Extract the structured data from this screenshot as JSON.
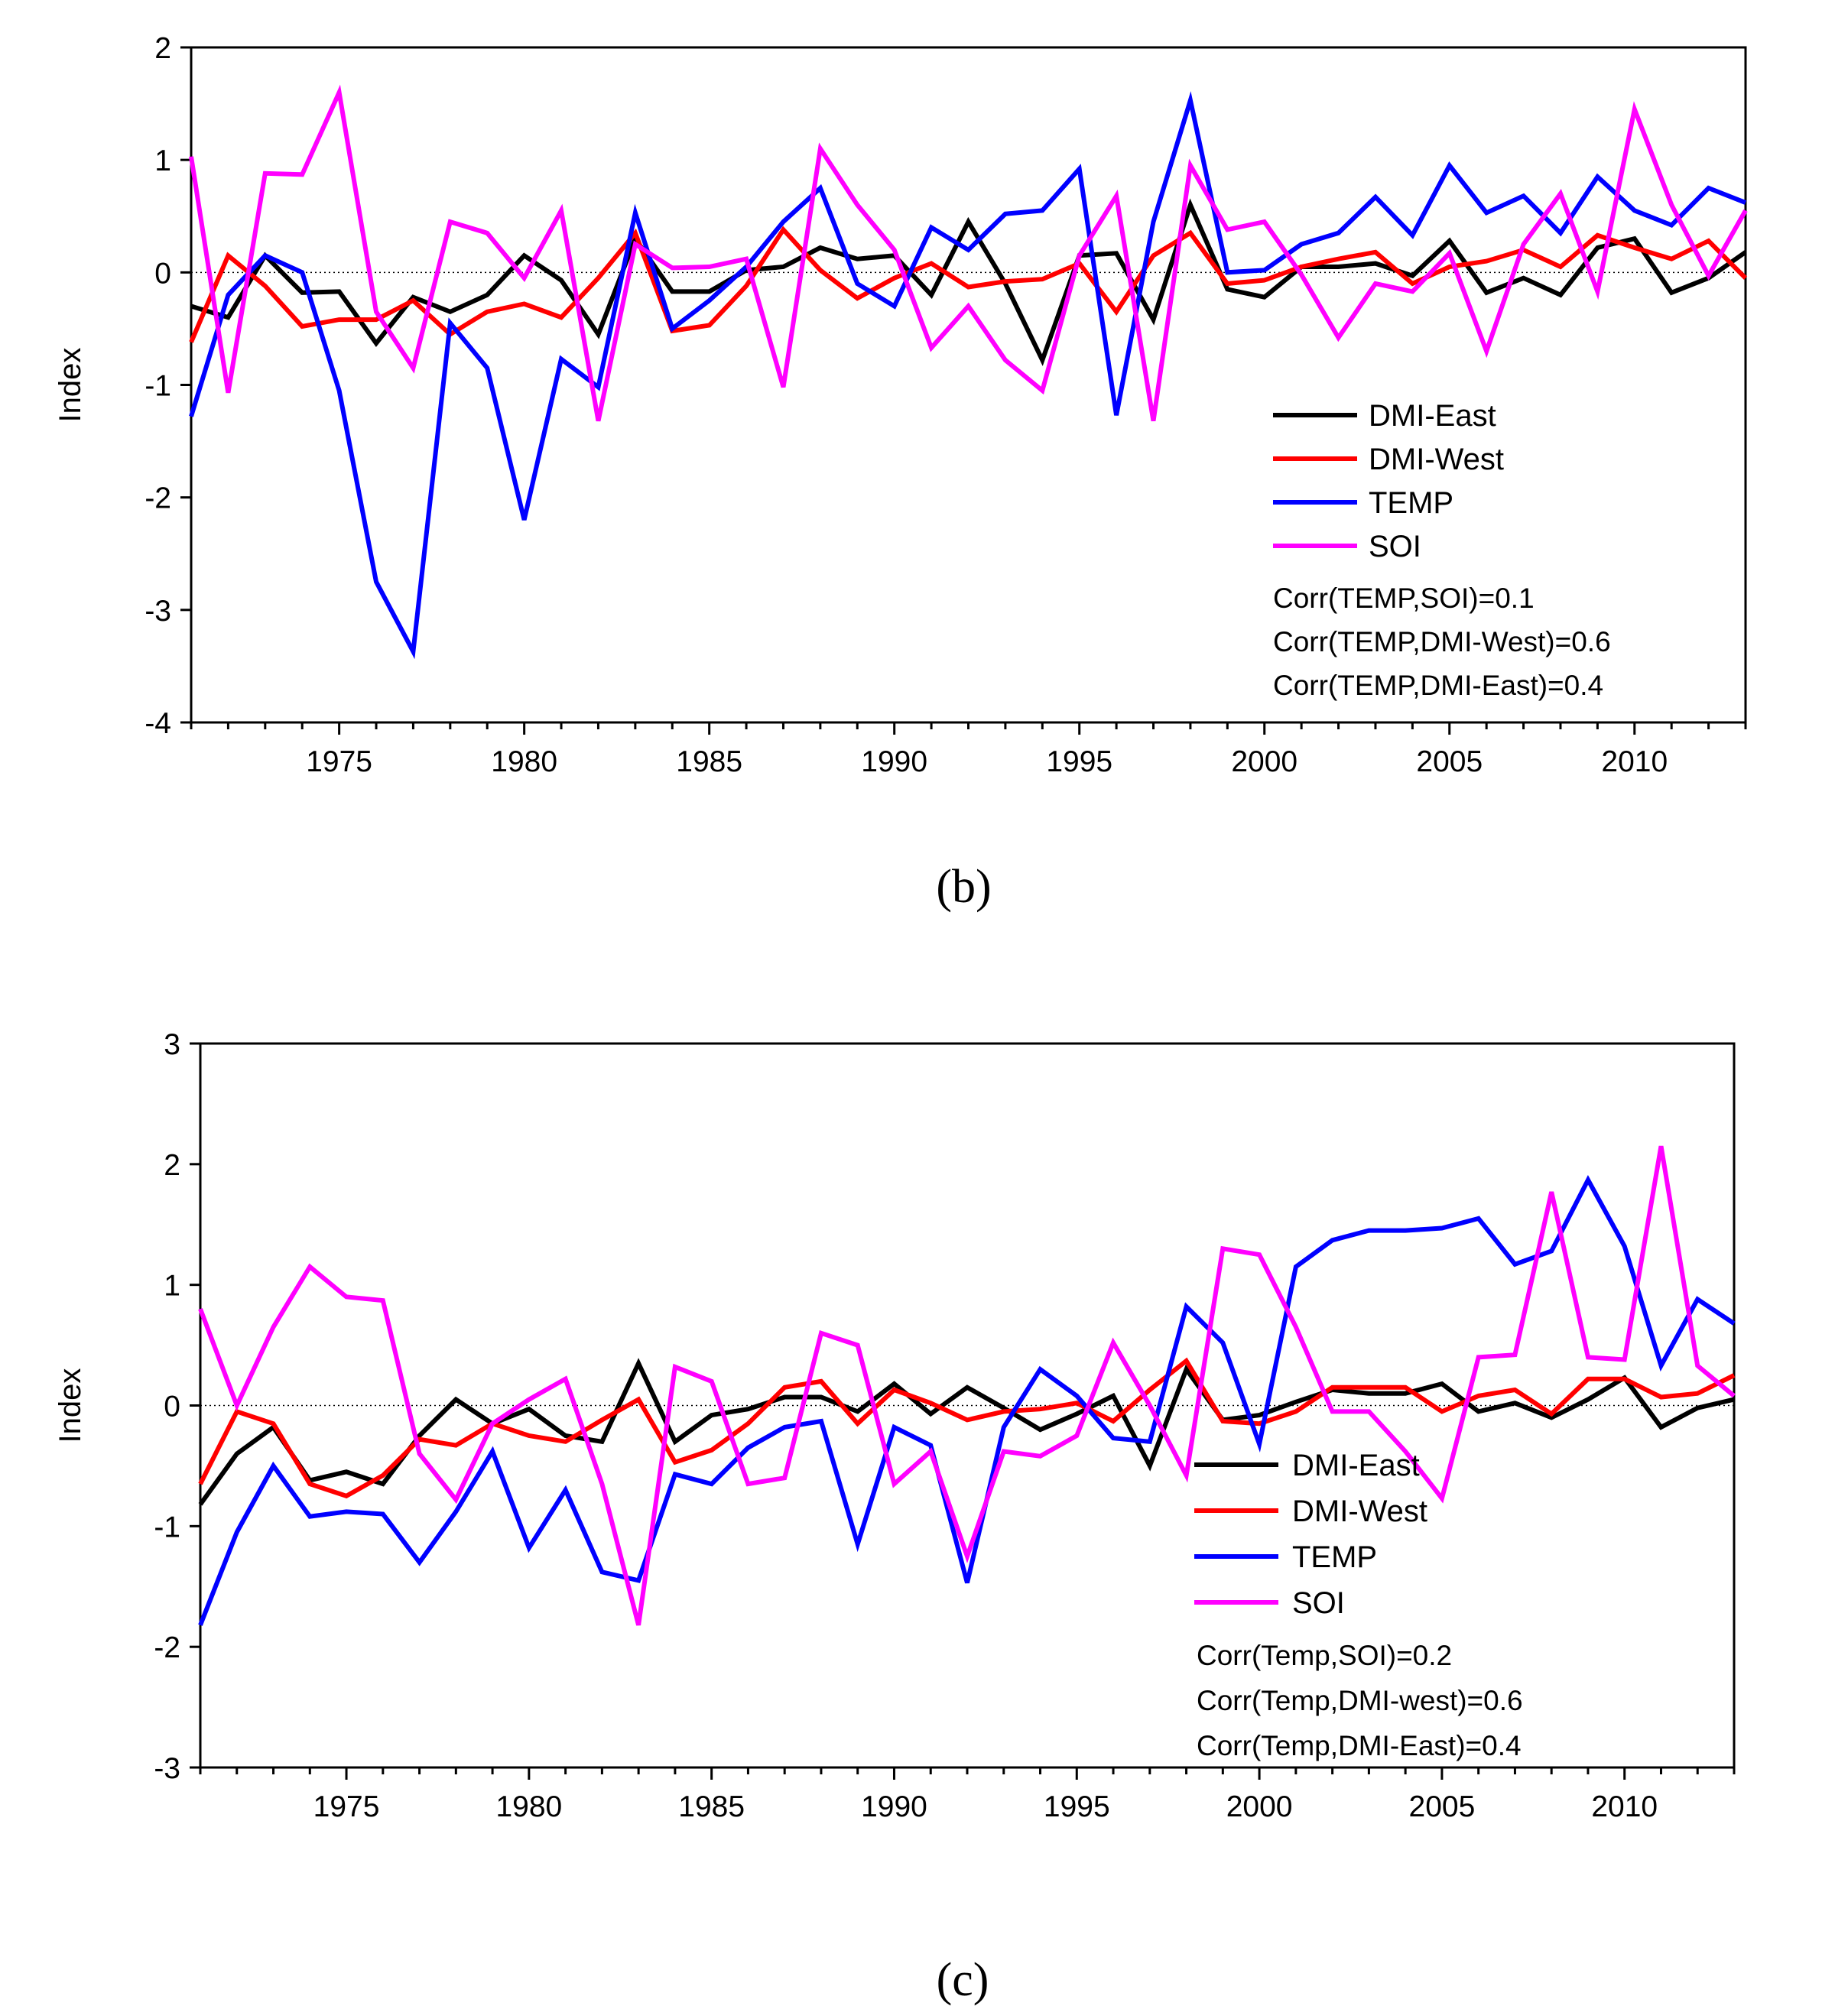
{
  "chart_data": [
    {
      "panel_label": "(b)",
      "type": "line",
      "ylabel": "Index",
      "xlabel": "",
      "xlim": [
        1971,
        2013
      ],
      "ylim": [
        -4,
        2
      ],
      "yticks": [
        2,
        1,
        0,
        -1,
        -2,
        -3,
        -4
      ],
      "xticks": [
        1975,
        1980,
        1985,
        1990,
        1995,
        2000,
        2005,
        2010
      ],
      "x_start": 1971,
      "series": [
        {
          "name": "DMI-East",
          "color": "#000000",
          "values": [
            -0.3,
            -0.4,
            0.15,
            -0.18,
            -0.17,
            -0.63,
            -0.22,
            -0.35,
            -0.2,
            0.15,
            -0.07,
            -0.55,
            0.3,
            -0.17,
            -0.17,
            0.02,
            0.05,
            0.22,
            0.12,
            0.15,
            -0.2,
            0.45,
            -0.1,
            -0.78,
            0.15,
            0.17,
            -0.42,
            0.6,
            -0.15,
            -0.22,
            0.05,
            0.05,
            0.08,
            -0.03,
            0.28,
            -0.18,
            -0.05,
            -0.2,
            0.22,
            0.3,
            -0.18,
            -0.05,
            0.18
          ]
        },
        {
          "name": "DMI-West",
          "color": "#ff0000",
          "values": [
            -0.62,
            0.15,
            -0.12,
            -0.48,
            -0.42,
            -0.42,
            -0.25,
            -0.55,
            -0.35,
            -0.28,
            -0.4,
            -0.05,
            0.35,
            -0.52,
            -0.47,
            -0.12,
            0.38,
            0.02,
            -0.23,
            -0.05,
            0.08,
            -0.13,
            -0.08,
            -0.06,
            0.08,
            -0.35,
            0.15,
            0.35,
            -0.1,
            -0.07,
            0.05,
            0.12,
            0.18,
            -0.1,
            0.05,
            0.1,
            0.2,
            0.05,
            0.33,
            0.22,
            0.12,
            0.28,
            -0.05
          ]
        },
        {
          "name": "TEMP",
          "color": "#0000ff",
          "values": [
            -1.28,
            -0.2,
            0.15,
            0.0,
            -1.05,
            -2.75,
            -3.37,
            -0.45,
            -0.85,
            -2.2,
            -0.77,
            -1.02,
            0.53,
            -0.5,
            -0.25,
            0.05,
            0.45,
            0.75,
            -0.1,
            -0.3,
            0.4,
            0.2,
            0.52,
            0.55,
            0.92,
            -1.27,
            0.45,
            1.53,
            0.0,
            0.02,
            0.25,
            0.35,
            0.67,
            0.33,
            0.95,
            0.53,
            0.68,
            0.35,
            0.85,
            0.55,
            0.42,
            0.75,
            0.62
          ]
        },
        {
          "name": "SOI",
          "color": "#ff00ff",
          "values": [
            1.03,
            -1.07,
            0.88,
            0.87,
            1.6,
            -0.35,
            -0.85,
            0.45,
            0.35,
            -0.05,
            0.55,
            -1.32,
            0.25,
            0.04,
            0.05,
            0.12,
            -1.02,
            1.1,
            0.6,
            0.2,
            -0.67,
            -0.3,
            -0.78,
            -1.05,
            0.15,
            0.68,
            -1.32,
            0.95,
            0.38,
            0.45,
            -0.02,
            -0.58,
            -0.1,
            -0.17,
            0.17,
            -0.7,
            0.25,
            0.7,
            -0.17,
            1.45,
            0.6,
            -0.03,
            0.55
          ]
        }
      ],
      "legend": {
        "placement": "bottom-right",
        "entries": [
          "DMI-East",
          "DMI-West",
          "TEMP",
          "SOI"
        ],
        "annotations": [
          "Corr(TEMP,SOI)=0.1",
          "Corr(TEMP,DMI-West)=0.6",
          "Corr(TEMP,DMI-East)=0.4"
        ]
      }
    },
    {
      "panel_label": "(c)",
      "type": "line",
      "ylabel": "Index",
      "xlabel": "",
      "xlim": [
        1971,
        2013
      ],
      "ylim": [
        -3,
        3
      ],
      "yticks": [
        3,
        2,
        1,
        0,
        -1,
        -2,
        -3
      ],
      "xticks": [
        1975,
        1980,
        1985,
        1990,
        1995,
        2000,
        2005,
        2010
      ],
      "x_start": 1971,
      "series": [
        {
          "name": "DMI-East",
          "color": "#000000",
          "values": [
            -0.82,
            -0.4,
            -0.18,
            -0.62,
            -0.55,
            -0.65,
            -0.25,
            0.05,
            -0.15,
            -0.03,
            -0.25,
            -0.3,
            0.35,
            -0.3,
            -0.08,
            -0.03,
            0.07,
            0.07,
            -0.05,
            0.18,
            -0.07,
            0.15,
            -0.02,
            -0.2,
            -0.07,
            0.08,
            -0.5,
            0.3,
            -0.12,
            -0.08,
            0.03,
            0.13,
            0.1,
            0.1,
            0.18,
            -0.05,
            0.02,
            -0.1,
            0.05,
            0.23,
            -0.18,
            -0.02,
            0.05
          ]
        },
        {
          "name": "DMI-West",
          "color": "#ff0000",
          "values": [
            -0.65,
            -0.05,
            -0.15,
            -0.65,
            -0.75,
            -0.58,
            -0.28,
            -0.33,
            -0.15,
            -0.25,
            -0.3,
            -0.12,
            0.05,
            -0.47,
            -0.37,
            -0.15,
            0.15,
            0.2,
            -0.15,
            0.13,
            0.02,
            -0.12,
            -0.05,
            -0.03,
            0.02,
            -0.13,
            0.13,
            0.37,
            -0.13,
            -0.15,
            -0.05,
            0.15,
            0.15,
            0.15,
            -0.05,
            0.08,
            0.13,
            -0.07,
            0.22,
            0.22,
            0.07,
            0.1,
            0.25
          ]
        },
        {
          "name": "TEMP",
          "color": "#0000ff",
          "values": [
            -1.82,
            -1.05,
            -0.5,
            -0.92,
            -0.88,
            -0.9,
            -1.3,
            -0.88,
            -0.38,
            -1.18,
            -0.7,
            -1.38,
            -1.45,
            -0.57,
            -0.65,
            -0.35,
            -0.18,
            -0.13,
            -1.15,
            -0.18,
            -0.33,
            -1.47,
            -0.18,
            0.3,
            0.08,
            -0.27,
            -0.3,
            0.82,
            0.52,
            -0.32,
            1.15,
            1.37,
            1.45,
            1.45,
            1.47,
            1.55,
            1.17,
            1.28,
            1.87,
            1.32,
            0.33,
            0.88,
            0.68
          ]
        },
        {
          "name": "SOI",
          "color": "#ff00ff",
          "values": [
            0.8,
            0.0,
            0.65,
            1.15,
            0.9,
            0.87,
            -0.4,
            -0.78,
            -0.15,
            0.05,
            0.22,
            -0.65,
            -1.82,
            0.32,
            0.2,
            -0.65,
            -0.6,
            0.6,
            0.5,
            -0.65,
            -0.38,
            -1.25,
            -0.38,
            -0.42,
            -0.25,
            0.52,
            0.0,
            -0.58,
            1.3,
            1.25,
            0.65,
            -0.05,
            -0.05,
            -0.38,
            -0.77,
            0.4,
            0.42,
            1.77,
            0.4,
            0.38,
            2.15,
            0.33,
            0.08
          ]
        }
      ],
      "legend": {
        "placement": "bottom-right",
        "entries": [
          "DMI-East",
          "DMI-West",
          "TEMP",
          "SOI"
        ],
        "annotations": [
          "Corr(Temp,SOI)=0.2",
          "Corr(Temp,DMI-west)=0.6",
          "Corr(Temp,DMI-East)=0.4"
        ]
      }
    }
  ]
}
